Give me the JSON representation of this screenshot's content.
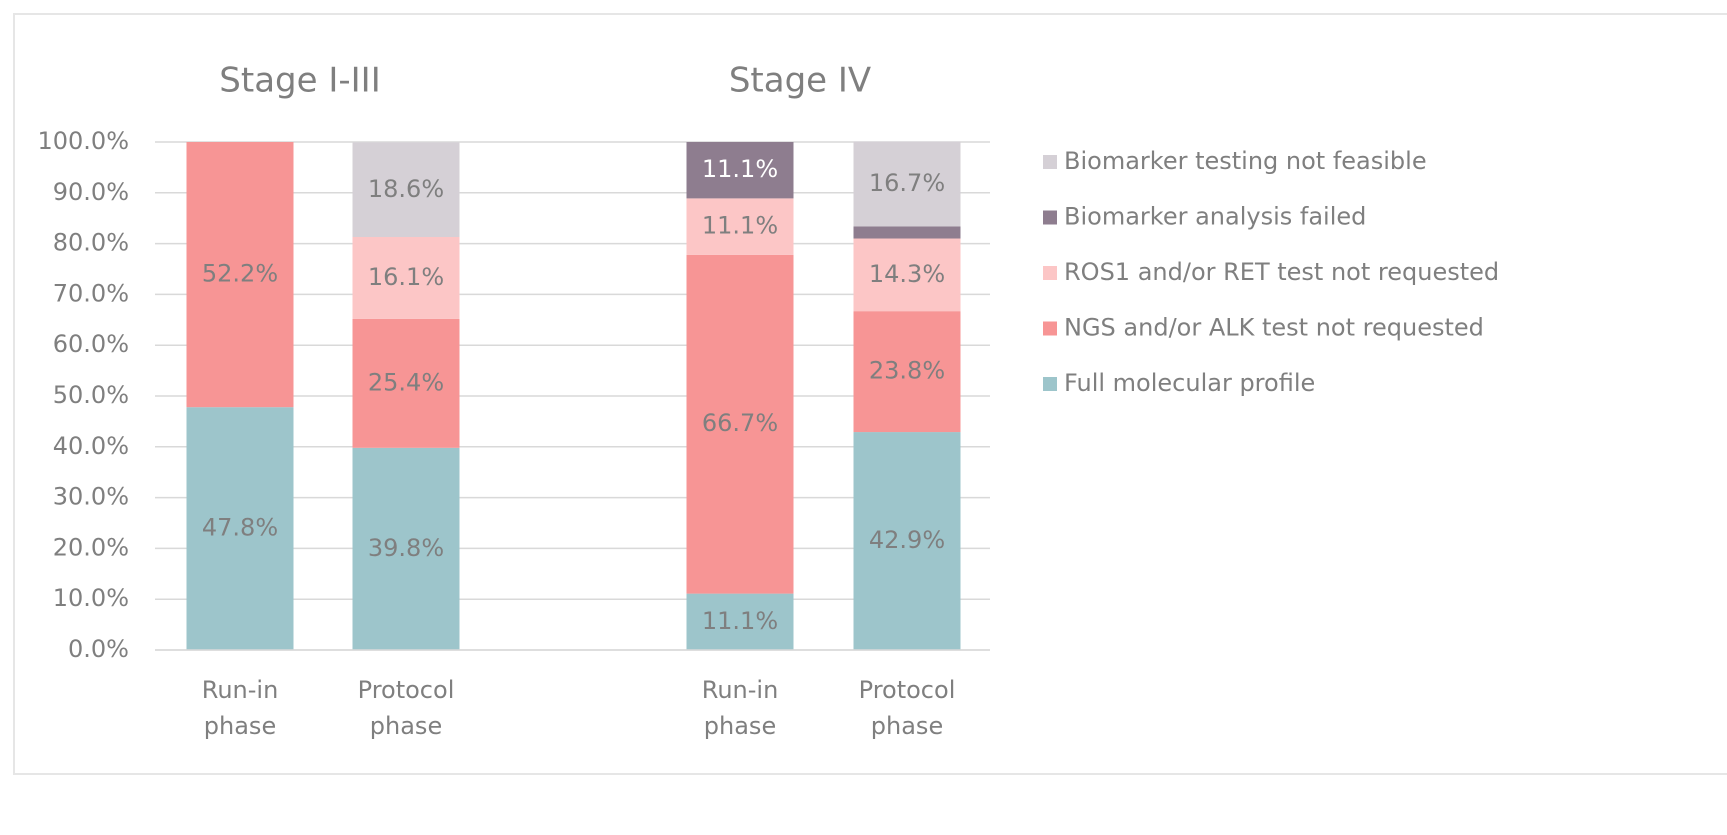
{
  "chart_data": {
    "type": "stacked_bar",
    "group_titles": [
      "Stage I-III",
      "Stage IV"
    ],
    "categories": [
      "Run-in phase",
      "Protocol phase",
      "Run-in phase",
      "Protocol phase"
    ],
    "series": [
      {
        "name": "Full molecular profile",
        "color": "#9dc5cb",
        "values": [
          47.8,
          39.8,
          11.1,
          42.9
        ],
        "value_labels": [
          "47.8%",
          "39.8%",
          "11.1%",
          "42.9%"
        ]
      },
      {
        "name": "NGS and/or ALK test not requested",
        "color": "#f79595",
        "values": [
          52.2,
          25.4,
          66.7,
          23.8
        ],
        "value_labels": [
          "52.2%",
          "25.4%",
          "66.7%",
          "23.8%"
        ]
      },
      {
        "name": "ROS1 and/or RET test not requested",
        "color": "#fcc6c6",
        "values": [
          0,
          16.1,
          11.1,
          14.3
        ],
        "value_labels": [
          null,
          "16.1%",
          "11.1%",
          "14.3%"
        ]
      },
      {
        "name": "Biomarker analysis failed",
        "color": "#8e7d8f",
        "values": [
          0,
          0,
          11.1,
          2.4
        ],
        "value_labels": [
          null,
          null,
          "11.1%",
          null
        ]
      },
      {
        "name": "Biomarker testing not feasible",
        "color": "#d5d0d6",
        "values": [
          0,
          18.6,
          0,
          16.7
        ],
        "value_labels": [
          null,
          "18.6%",
          null,
          "16.7%"
        ]
      }
    ],
    "ylim": [
      0,
      100
    ],
    "yticks": [
      {
        "value": 0,
        "label": "0.0%"
      },
      {
        "value": 10,
        "label": "10.0%"
      },
      {
        "value": 20,
        "label": "20.0%"
      },
      {
        "value": 30,
        "label": "30.0%"
      },
      {
        "value": 40,
        "label": "40.0%"
      },
      {
        "value": 50,
        "label": "50.0%"
      },
      {
        "value": 60,
        "label": "60.0%"
      },
      {
        "value": 70,
        "label": "70.0%"
      },
      {
        "value": 80,
        "label": "80.0%"
      },
      {
        "value": 90,
        "label": "90.0%"
      },
      {
        "value": 100,
        "label": "100.0%"
      }
    ],
    "grid": true,
    "legend": "right"
  }
}
